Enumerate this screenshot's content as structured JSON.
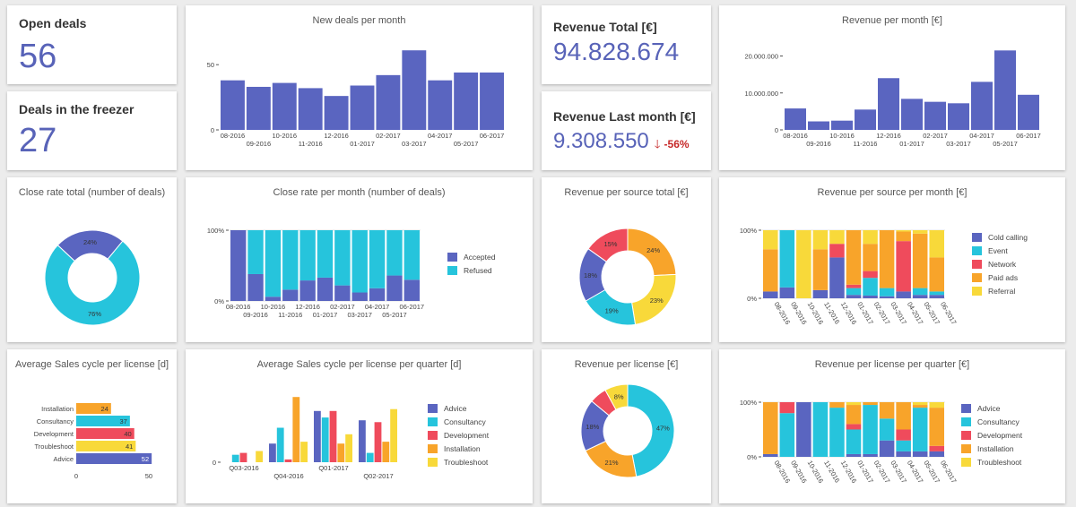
{
  "open_deals": {
    "title": "Open deals",
    "value": "56"
  },
  "freezer": {
    "title": "Deals in the freezer",
    "value": "27"
  },
  "revenue_total": {
    "title": "Revenue Total [€]",
    "value": "94.828.674"
  },
  "revenue_last_month": {
    "title": "Revenue Last month [€]",
    "value": "9.308.550",
    "delta": "-56%",
    "trend_icon": "arrow-down-icon"
  },
  "colors": {
    "blue": "#5a65c0",
    "cyan": "#26c4dc",
    "red": "#ef4b5c",
    "orange": "#f8a42a",
    "yellow": "#f8d93a"
  },
  "chart_data": [
    {
      "id": "new_deals",
      "type": "bar",
      "title": "New deals per month",
      "categories": [
        "08-2016",
        "09-2016",
        "10-2016",
        "11-2016",
        "12-2016",
        "01-2017",
        "02-2017",
        "03-2017",
        "04-2017",
        "05-2017",
        "06-2017"
      ],
      "values": [
        38,
        33,
        36,
        32,
        26,
        34,
        42,
        61,
        38,
        44,
        44
      ],
      "ylim": [
        0,
        68
      ],
      "yticks": [
        0,
        50
      ],
      "ytick_labels": [
        "0",
        "50"
      ]
    },
    {
      "id": "revenue_month",
      "type": "bar",
      "title": "Revenue per month [€]",
      "categories": [
        "08-2016",
        "09-2016",
        "10-2016",
        "11-2016",
        "12-2016",
        "01-2017",
        "02-2017",
        "03-2017",
        "04-2017",
        "05-2017",
        "06-2017"
      ],
      "values": [
        5800000,
        2300000,
        2500000,
        5500000,
        14000000,
        8400000,
        7600000,
        7200000,
        13000000,
        21500000,
        9500000
      ],
      "ylim": [
        0,
        24000000
      ],
      "yticks": [
        0,
        10000000,
        20000000
      ],
      "ytick_labels": [
        "0",
        "10.000.000",
        "20.000.000"
      ]
    },
    {
      "id": "close_rate_total",
      "type": "pie",
      "title": "Close rate total (number of deals)",
      "labels": [
        "Accepted",
        "Refused"
      ],
      "values": [
        24,
        76
      ],
      "value_labels": [
        "24%",
        "76%"
      ]
    },
    {
      "id": "close_rate_month",
      "type": "bar",
      "title": "Close rate per month (number of deals)",
      "stacked": true,
      "categories": [
        "08-2016",
        "09-2016",
        "10-2016",
        "11-2016",
        "12-2016",
        "01-2017",
        "02-2017",
        "03-2017",
        "04-2017",
        "05-2017",
        "06-2017"
      ],
      "yticks": [
        0,
        100
      ],
      "ytick_labels": [
        "0%",
        "100%"
      ],
      "series": [
        {
          "name": "Accepted",
          "values": [
            100,
            38,
            6,
            16,
            29,
            33,
            22,
            12,
            18,
            36,
            30
          ]
        },
        {
          "name": "Refused",
          "values": [
            0,
            62,
            94,
            84,
            71,
            67,
            78,
            88,
            82,
            64,
            70
          ]
        }
      ],
      "legend": [
        "Accepted",
        "Refused"
      ]
    },
    {
      "id": "revenue_source_total",
      "type": "pie",
      "title": "Revenue per source total [€]",
      "labels": [
        "Paid ads",
        "Referral",
        "Event",
        "Cold calling",
        "Network"
      ],
      "values": [
        24,
        23,
        19,
        18,
        15
      ],
      "value_labels": [
        "24%",
        "23%",
        "19%",
        "18%",
        "15%"
      ]
    },
    {
      "id": "revenue_source_month",
      "type": "bar",
      "title": "Revenue per source per month [€]",
      "stacked": true,
      "categories": [
        "08-2016",
        "09-2016",
        "10-2016",
        "11-2016",
        "12-2016",
        "01-2017",
        "02-2017",
        "03-2017",
        "04-2017",
        "05-2017",
        "06-2017"
      ],
      "yticks": [
        0,
        100
      ],
      "ytick_labels": [
        "0%",
        "100%"
      ],
      "series": [
        {
          "name": "Cold calling",
          "values": [
            10,
            16,
            0,
            12,
            60,
            5,
            4,
            3,
            10,
            5,
            5
          ]
        },
        {
          "name": "Event",
          "values": [
            0,
            84,
            0,
            0,
            0,
            10,
            26,
            12,
            0,
            10,
            5
          ]
        },
        {
          "name": "Network",
          "values": [
            0,
            0,
            0,
            0,
            20,
            5,
            10,
            0,
            74,
            0,
            0
          ]
        },
        {
          "name": "Paid ads",
          "values": [
            62,
            0,
            0,
            60,
            0,
            80,
            40,
            85,
            14,
            80,
            50
          ]
        },
        {
          "name": "Referral",
          "values": [
            28,
            0,
            100,
            28,
            20,
            0,
            20,
            0,
            2,
            5,
            40
          ]
        }
      ],
      "legend": [
        "Cold calling",
        "Event",
        "Network",
        "Paid ads",
        "Referral"
      ]
    },
    {
      "id": "sales_cycle",
      "type": "bar",
      "orientation": "horizontal",
      "title": "Average Sales cycle per license [d]",
      "categories": [
        "Installation",
        "Consultancy",
        "Development",
        "Troubleshoot",
        "Advice"
      ],
      "values": [
        24,
        37,
        40,
        41,
        52
      ],
      "xlim": [
        0,
        55
      ],
      "xticks": [
        0,
        50
      ],
      "xtick_labels": [
        "0",
        "50"
      ]
    },
    {
      "id": "sales_cycle_quarter",
      "type": "bar",
      "title": "Average Sales cycle per license per quarter [d]",
      "categories": [
        "Q03-2016",
        "Q04-2016",
        "Q01-2017",
        "Q02-2017"
      ],
      "ylim": [
        0,
        75
      ],
      "yticks": [
        0
      ],
      "ytick_labels": [
        "0"
      ],
      "series": [
        {
          "name": "Advice",
          "values": [
            0,
            20,
            55,
            45
          ]
        },
        {
          "name": "Consultancy",
          "values": [
            8,
            37,
            48,
            10
          ]
        },
        {
          "name": "Development",
          "values": [
            10,
            3,
            55,
            43
          ]
        },
        {
          "name": "Installation",
          "values": [
            0,
            70,
            20,
            22
          ]
        },
        {
          "name": "Troubleshoot",
          "values": [
            12,
            22,
            30,
            57
          ]
        }
      ],
      "legend": [
        "Advice",
        "Consultancy",
        "Development",
        "Installation",
        "Troubleshoot"
      ]
    },
    {
      "id": "revenue_license",
      "type": "pie",
      "title": "Revenue per license [€]",
      "labels": [
        "Consultancy",
        "Installation",
        "Advice",
        "Development",
        "Troubleshoot"
      ],
      "values": [
        47,
        21,
        18,
        6,
        8
      ],
      "value_labels": [
        "47%",
        "21%",
        "18%",
        "",
        "8%"
      ]
    },
    {
      "id": "revenue_license_quarter",
      "type": "bar",
      "title": "Revenue per license per quarter [€]",
      "stacked": true,
      "categories": [
        "08-2016",
        "09-2016",
        "10-2016",
        "11-2016",
        "12-2016",
        "01-2017",
        "02-2017",
        "03-2017",
        "04-2017",
        "05-2017",
        "06-2017"
      ],
      "yticks": [
        0,
        100
      ],
      "ytick_labels": [
        "0%",
        "100%"
      ],
      "series": [
        {
          "name": "Advice",
          "values": [
            5,
            0,
            100,
            0,
            0,
            5,
            5,
            30,
            10,
            10,
            10
          ]
        },
        {
          "name": "Consultancy",
          "values": [
            0,
            80,
            0,
            100,
            90,
            45,
            90,
            40,
            20,
            80,
            0
          ]
        },
        {
          "name": "Development",
          "values": [
            0,
            20,
            0,
            0,
            0,
            10,
            0,
            0,
            20,
            0,
            10
          ]
        },
        {
          "name": "Installation",
          "values": [
            95,
            0,
            0,
            0,
            10,
            35,
            5,
            30,
            50,
            5,
            70
          ]
        },
        {
          "name": "Troubleshoot",
          "values": [
            0,
            0,
            0,
            0,
            0,
            5,
            0,
            0,
            0,
            5,
            10
          ]
        }
      ],
      "legend": [
        "Advice",
        "Consultancy",
        "Development",
        "Installation",
        "Troubleshoot"
      ]
    }
  ]
}
